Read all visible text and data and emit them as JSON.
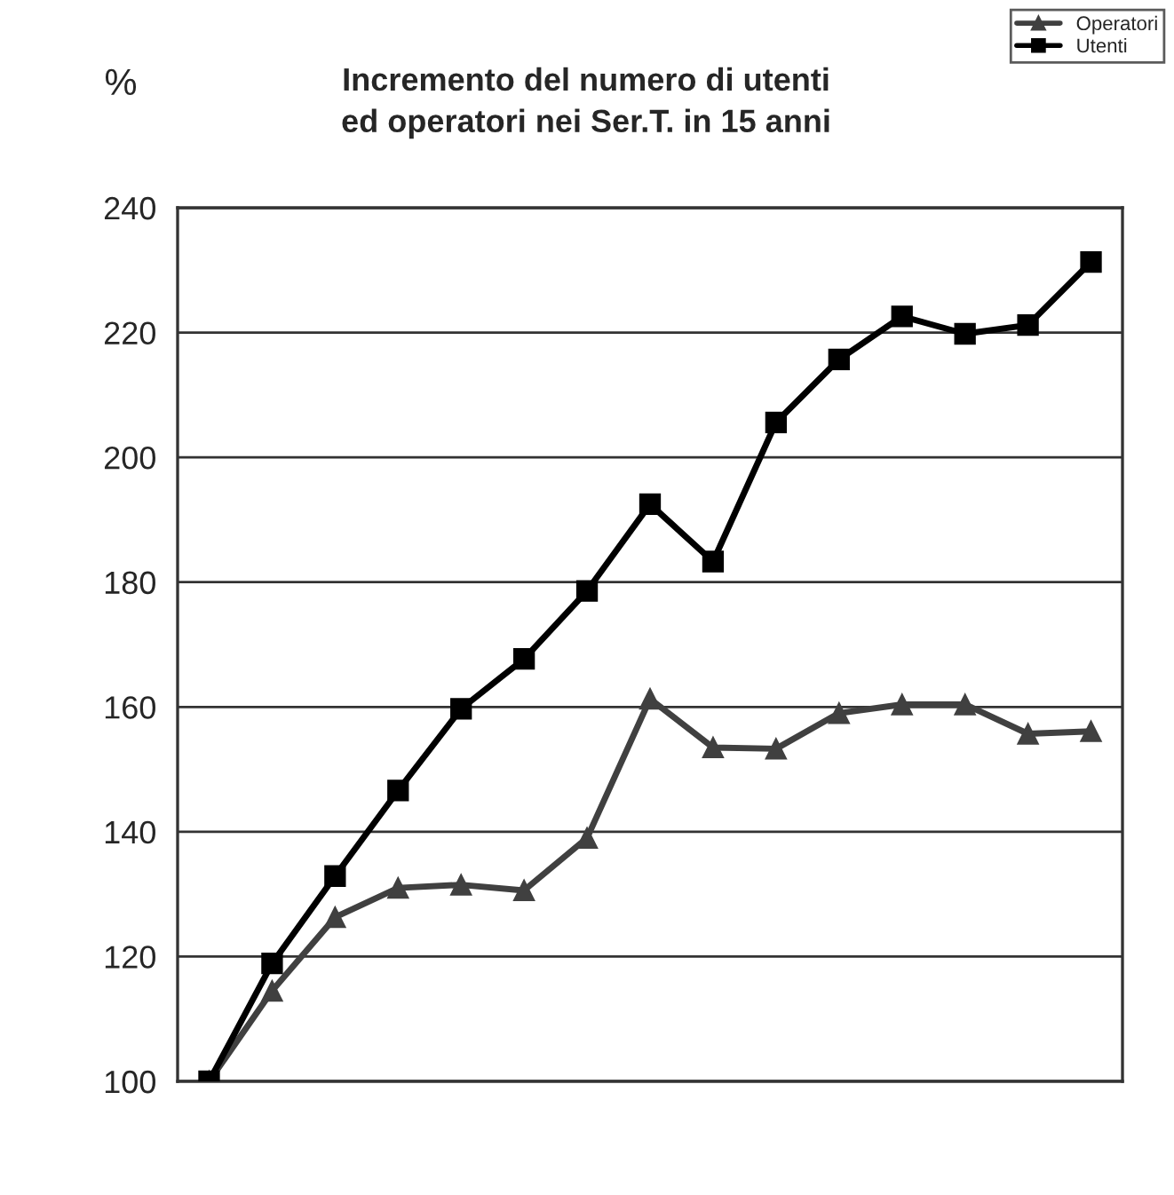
{
  "chart_data": {
    "type": "line",
    "title": "Incremento del numero di utenti\ned operatori nei Ser.T. in 15 anni",
    "ylabel": "%",
    "categories": [
      null,
      null,
      null,
      null,
      null,
      null,
      null,
      null,
      null,
      null,
      null,
      null,
      null,
      null,
      null
    ],
    "series": [
      {
        "name": "Operatori",
        "color": "#404040",
        "marker": "triangle",
        "values": [
          100,
          114.5,
          126.3,
          131,
          131.5,
          130.6,
          139,
          161.3,
          153.5,
          153.3,
          159,
          160.4,
          160.4,
          155.7,
          156.1
        ]
      },
      {
        "name": "Utenti",
        "color": "#000000",
        "marker": "square",
        "values": [
          100,
          118.9,
          132.9,
          146.6,
          159.7,
          167.7,
          178.6,
          192.5,
          183.3,
          205.6,
          215.7,
          222.6,
          219.8,
          221.2,
          231.3
        ]
      }
    ],
    "ylim": [
      100,
      240
    ],
    "yticks": [
      100,
      120,
      140,
      160,
      180,
      200,
      220,
      240
    ],
    "grid": "y",
    "legend": "top right"
  }
}
